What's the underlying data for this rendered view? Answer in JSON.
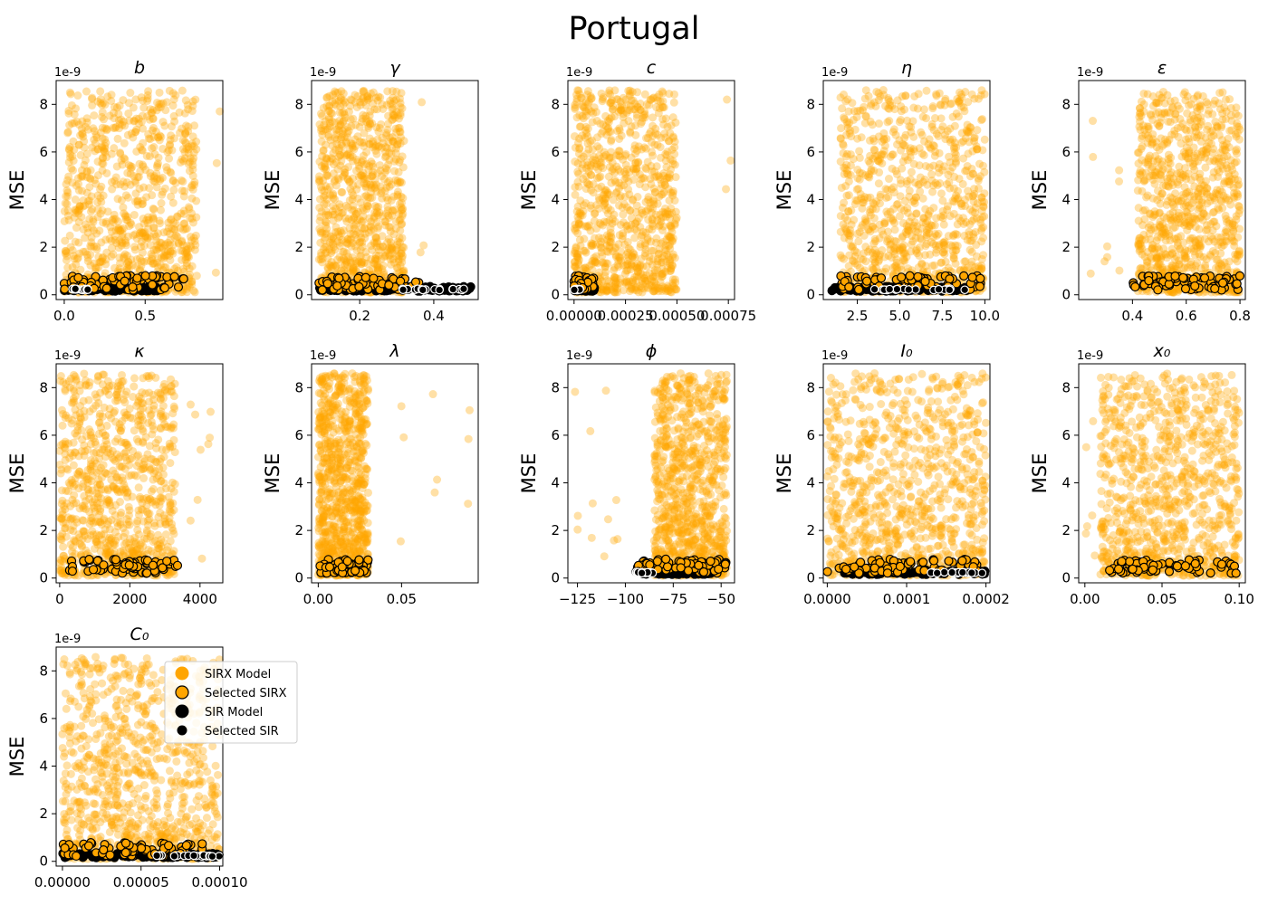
{
  "figure": {
    "title": "Portugal"
  },
  "colors": {
    "sirx": "#FFA500",
    "sir": "#000000",
    "edge": "#000000",
    "selected_sir_edge": "#ffffff"
  },
  "legend": {
    "placement": "right of C0 panel",
    "entries": [
      {
        "label": "SIRX Model",
        "kind": "sirx"
      },
      {
        "label": "Selected SIRX",
        "kind": "sel_sirx"
      },
      {
        "label": "SIR Model",
        "kind": "sir"
      },
      {
        "label": "Selected SIR",
        "kind": "sel_sir"
      }
    ]
  },
  "chart_data": [
    {
      "type": "scatter",
      "param": "b",
      "title": "b",
      "ylabel": "MSE",
      "yexp": "1e-9",
      "ylim": [
        -0.2,
        9.0
      ],
      "xlim": [
        -0.05,
        0.98
      ],
      "xticks": [
        0.0,
        0.5
      ],
      "xticklabels": [
        "0.0",
        "0.5"
      ],
      "yticks": [
        0,
        2,
        4,
        6,
        8
      ],
      "yticklabels": [
        "0",
        "2",
        "4",
        "6",
        "8"
      ],
      "dist": {
        "sirx": [
          0.0,
          0.82
        ],
        "sirx_outliers": [
          0.95
        ],
        "sir": [
          0.0,
          0.58
        ],
        "sel_sirx": [
          0.0,
          0.75
        ],
        "sel_sir": [
          0.05,
          0.15
        ]
      }
    },
    {
      "type": "scatter",
      "param": "gamma",
      "title": "γ",
      "ylabel": "MSE",
      "yexp": "1e-9",
      "ylim": [
        -0.2,
        9.0
      ],
      "xlim": [
        0.07,
        0.52
      ],
      "xticks": [
        0.2,
        0.4
      ],
      "xticklabels": [
        "0.2",
        "0.4"
      ],
      "yticks": [
        0,
        2,
        4,
        6,
        8
      ],
      "yticklabels": [
        "0",
        "2",
        "4",
        "6",
        "8"
      ],
      "dist": {
        "sirx": [
          0.09,
          0.32
        ],
        "sirx_outliers": [
          0.37
        ],
        "sir": [
          0.09,
          0.5
        ],
        "sel_sirx": [
          0.09,
          0.36
        ],
        "sel_sir": [
          0.31,
          0.5
        ]
      }
    },
    {
      "type": "scatter",
      "param": "c",
      "title": "c",
      "ylabel": "MSE",
      "yexp": "1e-9",
      "ylim": [
        -0.2,
        9.0
      ],
      "xlim": [
        -3e-05,
        0.00078
      ],
      "xticks": [
        0.0,
        0.00025,
        0.0005,
        0.00075
      ],
      "xticklabels": [
        "0.00000",
        "0.00025",
        "0.00050",
        "0.00075"
      ],
      "yticks": [
        0,
        2,
        4,
        6,
        8
      ],
      "yticklabels": [
        "0",
        "2",
        "4",
        "6",
        "8"
      ],
      "dist": {
        "sirx": [
          0.0,
          0.0005
        ],
        "sirx_outliers": [
          0.00075
        ],
        "sir": [
          0.0,
          0.0001
        ],
        "sel_sirx": [
          0.0,
          0.0001
        ],
        "sel_sir": [
          0.0,
          3e-05
        ]
      }
    },
    {
      "type": "scatter",
      "param": "eta",
      "title": "η",
      "ylabel": "MSE",
      "yexp": "1e-9",
      "ylim": [
        -0.2,
        9.0
      ],
      "xlim": [
        0.5,
        10.3
      ],
      "xticks": [
        2.5,
        5.0,
        7.5,
        10.0
      ],
      "xticklabels": [
        "2.5",
        "5.0",
        "7.5",
        "10.0"
      ],
      "yticks": [
        0,
        2,
        4,
        6,
        8
      ],
      "yticklabels": [
        "0",
        "2",
        "4",
        "6",
        "8"
      ],
      "dist": {
        "sirx": [
          1.5,
          10.0
        ],
        "sirx_outliers": [],
        "sir": [
          1.0,
          9.0
        ],
        "sel_sirx": [
          1.5,
          10.0
        ],
        "sel_sir": [
          3.0,
          9.0
        ]
      }
    },
    {
      "type": "scatter",
      "param": "epsilon",
      "title": "ε",
      "ylabel": "MSE",
      "yexp": "1e-9",
      "ylim": [
        -0.2,
        9.0
      ],
      "xlim": [
        0.2,
        0.82
      ],
      "xticks": [
        0.4,
        0.6,
        0.8
      ],
      "xticklabels": [
        "0.4",
        "0.6",
        "0.8"
      ],
      "yticks": [
        0,
        2,
        4,
        6,
        8
      ],
      "yticklabels": [
        "0",
        "2",
        "4",
        "6",
        "8"
      ],
      "dist": {
        "sirx": [
          0.42,
          0.8
        ],
        "sirx_outliers": [
          0.3,
          0.25,
          0.35
        ],
        "sir": [],
        "sel_sirx": [
          0.4,
          0.8
        ],
        "sel_sir": []
      }
    },
    {
      "type": "scatter",
      "param": "kappa",
      "title": "κ",
      "ylabel": "MSE",
      "yexp": "1e-9",
      "ylim": [
        -0.2,
        9.0
      ],
      "xlim": [
        -100,
        4650
      ],
      "xticks": [
        0,
        2000,
        4000
      ],
      "xticklabels": [
        "0",
        "2000",
        "4000"
      ],
      "yticks": [
        0,
        2,
        4,
        6,
        8
      ],
      "yticklabels": [
        "0",
        "2",
        "4",
        "6",
        "8"
      ],
      "dist": {
        "sirx": [
          0,
          3300
        ],
        "sirx_outliers": [
          4300,
          4000,
          3800
        ],
        "sir": [],
        "sel_sirx": [
          200,
          3400
        ],
        "sel_sir": []
      }
    },
    {
      "type": "scatter",
      "param": "lambda",
      "title": "λ",
      "ylabel": "MSE",
      "yexp": "1e-9",
      "ylim": [
        -0.2,
        9.0
      ],
      "xlim": [
        -0.004,
        0.096
      ],
      "xticks": [
        0.0,
        0.05
      ],
      "xticklabels": [
        "0.00",
        "0.05"
      ],
      "yticks": [
        0,
        2,
        4,
        6,
        8
      ],
      "yticklabels": [
        "0",
        "2",
        "4",
        "6",
        "8"
      ],
      "dist": {
        "sirx": [
          0.0,
          0.03
        ],
        "sirx_outliers": [
          0.05,
          0.07,
          0.09
        ],
        "sir": [],
        "sel_sirx": [
          0.0,
          0.03
        ],
        "sel_sir": []
      }
    },
    {
      "type": "scatter",
      "param": "phi",
      "title": "ϕ",
      "ylabel": "MSE",
      "yexp": "1e-9",
      "ylim": [
        -0.2,
        9.0
      ],
      "xlim": [
        -130,
        -43
      ],
      "xticks": [
        -125,
        -100,
        -75,
        -50
      ],
      "xticklabels": [
        "−125",
        "−100",
        "−75",
        "−50"
      ],
      "yticks": [
        0,
        2,
        4,
        6,
        8
      ],
      "yticklabels": [
        "0",
        "2",
        "4",
        "6",
        "8"
      ],
      "dist": {
        "sirx": [
          -85,
          -47
        ],
        "sirx_outliers": [
          -125,
          -118,
          -110,
          -105
        ],
        "sir": [
          -95,
          -55
        ],
        "sel_sirx": [
          -95,
          -47
        ],
        "sel_sir": [
          -95,
          -85
        ]
      }
    },
    {
      "type": "scatter",
      "param": "I0",
      "title": "I₀",
      "ylabel": "MSE",
      "yexp": "1e-9",
      "ylim": [
        -0.2,
        9.0
      ],
      "xlim": [
        -5e-06,
        0.000205
      ],
      "xticks": [
        0.0,
        0.0001,
        0.0002
      ],
      "xticklabels": [
        "0.0000",
        "0.0001",
        "0.0002"
      ],
      "yticks": [
        0,
        2,
        4,
        6,
        8
      ],
      "yticklabels": [
        "0",
        "2",
        "4",
        "6",
        "8"
      ],
      "dist": {
        "sirx": [
          0.0,
          0.0002
        ],
        "sirx_outliers": [],
        "sir": [
          2e-05,
          0.0002
        ],
        "sel_sirx": [
          0.0,
          0.00019
        ],
        "sel_sir": [
          0.00013,
          0.0002
        ]
      }
    },
    {
      "type": "scatter",
      "param": "x0",
      "title": "x₀",
      "ylabel": "MSE",
      "yexp": "1e-9",
      "ylim": [
        -0.2,
        9.0
      ],
      "xlim": [
        -0.004,
        0.104
      ],
      "xticks": [
        0.0,
        0.05,
        0.1
      ],
      "xticklabels": [
        "0.00",
        "0.05",
        "0.10"
      ],
      "yticks": [
        0,
        2,
        4,
        6,
        8
      ],
      "yticklabels": [
        "0",
        "2",
        "4",
        "6",
        "8"
      ],
      "dist": {
        "sirx": [
          0.01,
          0.1
        ],
        "sirx_outliers": [
          0.0,
          0.005
        ],
        "sir": [],
        "sel_sirx": [
          0.015,
          0.1
        ],
        "sel_sir": []
      }
    },
    {
      "type": "scatter",
      "param": "C0",
      "title": "C₀",
      "ylabel": "MSE",
      "yexp": "1e-9",
      "ylim": [
        -0.2,
        9.0
      ],
      "xlim": [
        -4e-06,
        0.000102
      ],
      "xticks": [
        0.0,
        5e-05,
        0.0001
      ],
      "xticklabels": [
        "0.00000",
        "0.00005",
        "0.00010"
      ],
      "yticks": [
        0,
        2,
        4,
        6,
        8
      ],
      "yticklabels": [
        "0",
        "2",
        "4",
        "6",
        "8"
      ],
      "dist": {
        "sirx": [
          0.0,
          0.0001
        ],
        "sirx_outliers": [],
        "sir": [
          0.0,
          0.0001
        ],
        "sel_sirx": [
          0.0,
          9e-05
        ],
        "sel_sir": [
          6e-05,
          0.0001
        ]
      }
    }
  ]
}
